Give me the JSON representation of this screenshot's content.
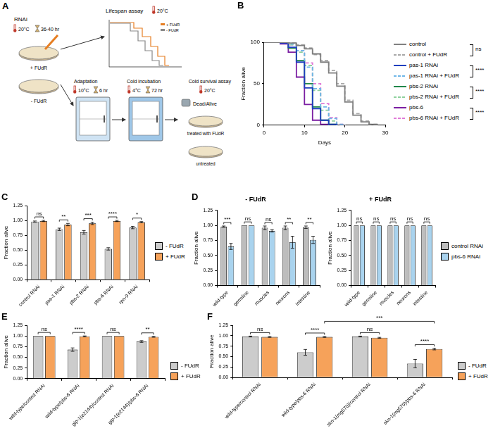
{
  "diagram": {
    "panel": "A",
    "rnai": {
      "label": "RNAi",
      "temp": "20°C",
      "time": "36-40 hr",
      "plus": "+ FUdR",
      "minus": "- FUdR"
    },
    "lifespan": {
      "title": "Lifespan assay",
      "temp": "20°C",
      "legend": [
        "+ FUdR",
        "- FUdR"
      ]
    },
    "adaptation": {
      "title": "Adaptation",
      "temp": "10°C",
      "time": "6 hr"
    },
    "cold": {
      "title": "Cold incubation",
      "temp": "4°C",
      "time": "72 hr"
    },
    "survival": {
      "title": "Cold survival assay",
      "temp": "20°C",
      "count": "Dead/Alive",
      "treated": "treated with FUdR",
      "untreated": "untreated"
    }
  },
  "chart_data": [
    {
      "panel": "B",
      "type": "line",
      "x_label": "Days",
      "y_label": "Fraction alive",
      "x": [
        0,
        2,
        4,
        6,
        8,
        10,
        12,
        14,
        16,
        18,
        20,
        22,
        24,
        26,
        28
      ],
      "xlim": [
        0,
        30
      ],
      "xticks": [
        0,
        10,
        20,
        30
      ],
      "ylim": [
        0,
        100
      ],
      "yticks": [
        0,
        50,
        100
      ],
      "grid": false,
      "legend": "right",
      "series": [
        {
          "name": "control",
          "color": "#808080",
          "line_style": "solid",
          "values": [
            100,
            100,
            100,
            99,
            96,
            92,
            86,
            76,
            63,
            47,
            28,
            12,
            4,
            1,
            0
          ]
        },
        {
          "name": "control + FUdR",
          "color": "#a8a8a8",
          "line_style": "dashed",
          "values": [
            100,
            100,
            100,
            100,
            97,
            93,
            85,
            78,
            66,
            50,
            30,
            14,
            5,
            1,
            0
          ]
        },
        {
          "name": "pas-1 RNAi",
          "color": "#1f3fbf",
          "line_style": "solid",
          "values": [
            100,
            100,
            99,
            94,
            76,
            45,
            20,
            6,
            1,
            0,
            null,
            null,
            null,
            null,
            null
          ]
        },
        {
          "name": "pas-1 RNAi + FUdR",
          "color": "#6fb7e8",
          "line_style": "dashed",
          "values": [
            100,
            100,
            100,
            98,
            90,
            70,
            44,
            22,
            8,
            1,
            0,
            null,
            null,
            null,
            null
          ]
        },
        {
          "name": "pbs-2 RNAi",
          "color": "#20874a",
          "line_style": "solid",
          "values": [
            100,
            100,
            99,
            93,
            78,
            50,
            22,
            6,
            1,
            0,
            null,
            null,
            null,
            null,
            null
          ]
        },
        {
          "name": "pbs-2 RNAi + FUdR",
          "color": "#8fd19e",
          "line_style": "dashed",
          "values": [
            100,
            100,
            100,
            97,
            88,
            72,
            42,
            18,
            5,
            0,
            null,
            null,
            null,
            null,
            null
          ]
        },
        {
          "name": "pbs-6",
          "color": "#7b1fa2",
          "line_style": "solid",
          "values": [
            100,
            100,
            98,
            88,
            58,
            25,
            6,
            1,
            0,
            null,
            null,
            null,
            null,
            null,
            null
          ]
        },
        {
          "name": "pbs-6 RNAi + FUdR",
          "color": "#e07bd8",
          "line_style": "dashed",
          "values": [
            100,
            100,
            100,
            97,
            90,
            75,
            50,
            26,
            9,
            1,
            0,
            null,
            null,
            null,
            null
          ]
        }
      ],
      "comparisons": [
        {
          "series": [
            "control",
            "control + FUdR"
          ],
          "label": "ns"
        },
        {
          "series": [
            "pas-1 RNAi",
            "pas-1 RNAi + FUdR"
          ],
          "label": "****"
        },
        {
          "series": [
            "pbs-2 RNAi",
            "pbs-2 RNAi + FUdR"
          ],
          "label": "****"
        },
        {
          "series": [
            "pbs-6",
            "pbs-6 RNAi + FUdR"
          ],
          "label": "****"
        }
      ]
    },
    {
      "panel": "C",
      "type": "bar",
      "y_label": "Fraction alive",
      "categories": [
        "control RNAi",
        "pas-1 RNAi",
        "pbs-2 RNAi",
        "pbs-6 RNAi",
        "rpn-9 RNAi"
      ],
      "ylim": [
        0,
        1.25
      ],
      "yticks": [
        {
          "value": 0,
          "label": "0.00"
        },
        {
          "value": 0.25,
          "label": "0.25"
        },
        {
          "value": 0.5,
          "label": "0.50"
        },
        {
          "value": 0.75,
          "label": "0.75"
        },
        {
          "value": 1,
          "label": "1.00"
        },
        {
          "value": 1.25,
          "label": "1.25"
        }
      ],
      "grid": false,
      "legend": "right",
      "series": [
        {
          "name": "- FUdR",
          "color": "#cccccc",
          "values": [
            0.98,
            0.85,
            0.8,
            0.52,
            0.88
          ],
          "errors": [
            0.01,
            0.02,
            0.03,
            0.02,
            0.02
          ]
        },
        {
          "name": "+ FUdR",
          "color": "#f6a25a",
          "values": [
            0.99,
            0.93,
            0.95,
            0.99,
            0.97
          ],
          "errors": [
            0.01,
            0.02,
            0.02,
            0.01,
            0.01
          ]
        }
      ],
      "significance": [
        "ns",
        "**",
        "***",
        "****",
        "*"
      ]
    },
    {
      "panel": "D",
      "type": "bar",
      "title": "- FUdR",
      "y_label": "Fraction alive",
      "categories": [
        "wild-type",
        "germline",
        "muscles",
        "neurons",
        "intestine"
      ],
      "ylim": [
        0,
        1.25
      ],
      "yticks": [
        {
          "value": 0,
          "label": "0.00"
        },
        {
          "value": 0.25,
          "label": "0.25"
        },
        {
          "value": 0.5,
          "label": "0.50"
        },
        {
          "value": 0.75,
          "label": "0.75"
        },
        {
          "value": 1,
          "label": "1.00"
        },
        {
          "value": 1.25,
          "label": "1.25"
        }
      ],
      "grid": false,
      "series": [
        {
          "name": "control RNAi",
          "color": "#bdbdbd",
          "values": [
            0.98,
            1.0,
            0.96,
            0.96,
            0.97
          ],
          "errors": [
            0.01,
            0,
            0.03,
            0.03,
            0.02
          ]
        },
        {
          "name": "pbs-6 RNAi",
          "color": "#a9d3ee",
          "values": [
            0.65,
            1.0,
            0.91,
            0.72,
            0.76
          ],
          "errors": [
            0.05,
            0,
            0.02,
            0.1,
            0.06
          ]
        }
      ],
      "significance": [
        "***",
        "ns",
        "ns",
        "**",
        "**"
      ]
    },
    {
      "type": "bar",
      "title": "+ FUdR",
      "y_label": "Fraction alive",
      "categories": [
        "wild-type",
        "germline",
        "muscles",
        "neurons",
        "intestine"
      ],
      "ylim": [
        0,
        1.25
      ],
      "yticks": [
        {
          "value": 0,
          "label": "0.00"
        },
        {
          "value": 0.25,
          "label": "0.25"
        },
        {
          "value": 0.5,
          "label": "0.50"
        },
        {
          "value": 0.75,
          "label": "0.75"
        },
        {
          "value": 1,
          "label": "1.00"
        },
        {
          "value": 1.25,
          "label": "1.25"
        }
      ],
      "grid": false,
      "legend": "right",
      "series": [
        {
          "name": "control RNAi",
          "color": "#bdbdbd",
          "values": [
            1.0,
            1.0,
            1.0,
            1.0,
            1.0
          ],
          "errors": [
            0,
            0,
            0,
            0,
            0
          ]
        },
        {
          "name": "pbs-6 RNAi",
          "color": "#a9d3ee",
          "values": [
            1.0,
            1.0,
            1.0,
            1.0,
            1.0
          ],
          "errors": [
            0,
            0,
            0,
            0,
            0
          ]
        }
      ],
      "significance": [
        "ns",
        "ns",
        "ns",
        "ns",
        "ns"
      ]
    },
    {
      "panel": "E",
      "type": "bar",
      "y_label": "Fraction alive",
      "categories": [
        "wild-type/control RNAi",
        "wild-type/pbs-6 RNAi",
        "glp-1(e2144)/control RNAi",
        "glp-1(e2144)/pbs-6 RNAi"
      ],
      "ylim": [
        0,
        1.25
      ],
      "yticks": [
        {
          "value": 0,
          "label": "0.00"
        },
        {
          "value": 0.25,
          "label": "0.25"
        },
        {
          "value": 0.5,
          "label": "0.50"
        },
        {
          "value": 0.75,
          "label": "0.75"
        },
        {
          "value": 1,
          "label": "1.00"
        },
        {
          "value": 1.25,
          "label": "1.25"
        }
      ],
      "grid": false,
      "legend": "right",
      "series": [
        {
          "name": "- FUdR",
          "color": "#cccccc",
          "values": [
            1.0,
            0.68,
            1.0,
            0.87
          ],
          "errors": [
            0,
            0.04,
            0,
            0.02
          ]
        },
        {
          "name": "+ FUdR",
          "color": "#f6a25a",
          "values": [
            1.0,
            0.99,
            1.0,
            0.98
          ],
          "errors": [
            0,
            0.01,
            0,
            0.01
          ]
        }
      ],
      "significance": [
        "ns",
        "****",
        "ns",
        "**"
      ]
    },
    {
      "panel": "F",
      "type": "bar",
      "y_label": "Fraction alive",
      "categories": [
        "wild-type/control RNAi",
        "wild-type/pbs-6 RNAi",
        "skn-1(mg570)/control RNAi",
        "skn-1(mg570)/pbs-6 RNAi"
      ],
      "ylim": [
        0,
        1.25
      ],
      "yticks": [
        {
          "value": 0,
          "label": "0.00"
        },
        {
          "value": 0.25,
          "label": "0.25"
        },
        {
          "value": 0.5,
          "label": "0.50"
        },
        {
          "value": 0.75,
          "label": "0.75"
        },
        {
          "value": 1,
          "label": "1.00"
        },
        {
          "value": 1.25,
          "label": "1.25"
        }
      ],
      "grid": false,
      "legend": "right",
      "series": [
        {
          "name": "- FUdR",
          "color": "#cccccc",
          "values": [
            0.98,
            0.6,
            0.98,
            0.33
          ],
          "errors": [
            0.01,
            0.07,
            0.01,
            0.1
          ]
        },
        {
          "name": "+ FUdR",
          "color": "#f6a25a",
          "values": [
            0.97,
            0.97,
            0.95,
            0.68
          ],
          "errors": [
            0.01,
            0.01,
            0.01,
            0.02
          ]
        }
      ],
      "significance": [
        "ns",
        "****",
        "ns",
        "****"
      ],
      "comparisons": [
        {
          "from_category": "wild-type/pbs-6 RNAi",
          "to_category": "skn-1(mg570)/pbs-6 RNAi",
          "series": "+ FUdR",
          "label": "***"
        }
      ]
    }
  ]
}
